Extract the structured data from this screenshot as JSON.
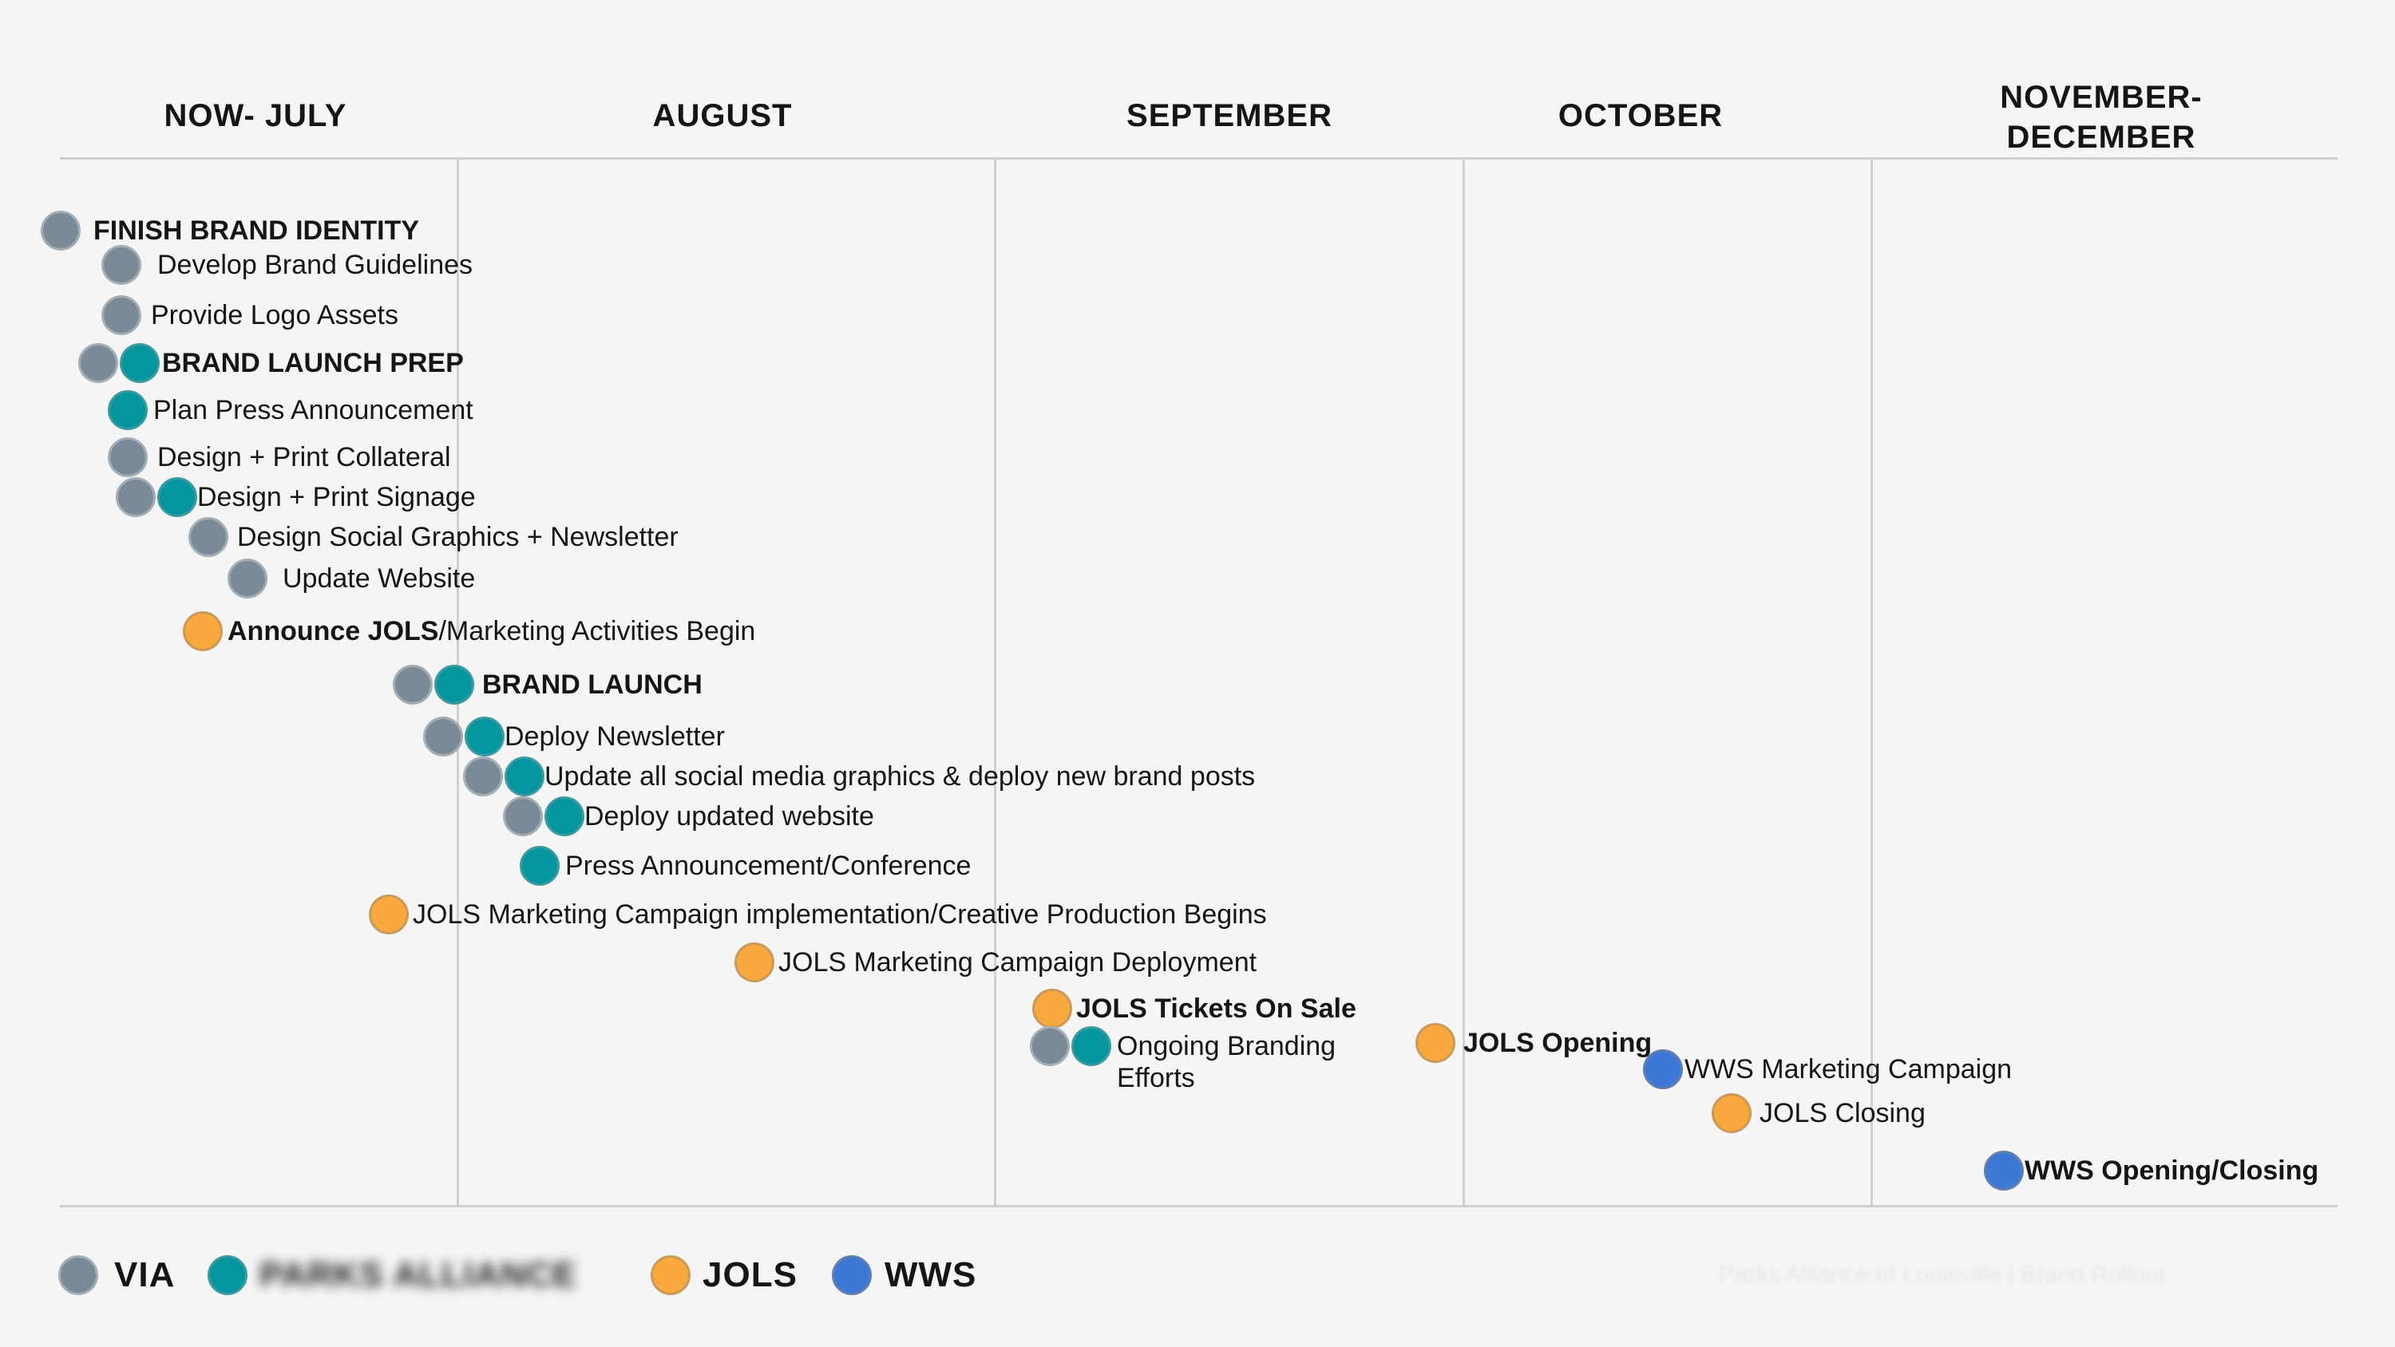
{
  "months": [
    {
      "id": "now-july",
      "lines": [
        "NOW- JULY"
      ]
    },
    {
      "id": "august",
      "lines": [
        "AUGUST"
      ]
    },
    {
      "id": "september",
      "lines": [
        "SEPTEMBER"
      ]
    },
    {
      "id": "october",
      "lines": [
        "OCTOBER"
      ]
    },
    {
      "id": "november-december",
      "lines": [
        "NOVEMBER-",
        "DECEMBER"
      ]
    }
  ],
  "items": [
    {
      "id": "finish-brand-identity",
      "dots": [
        "via"
      ],
      "segments": [
        {
          "text": "FINISH BRAND IDENTITY",
          "bold": true
        }
      ]
    },
    {
      "id": "develop-brand-guidelines",
      "dots": [
        "via"
      ],
      "segments": [
        {
          "text": "Develop Brand Guidelines",
          "bold": false
        }
      ]
    },
    {
      "id": "provide-logo-assets",
      "dots": [
        "via"
      ],
      "segments": [
        {
          "text": "Provide Logo Assets",
          "bold": false
        }
      ]
    },
    {
      "id": "brand-launch-prep",
      "dots": [
        "via",
        "parks"
      ],
      "segments": [
        {
          "text": "BRAND LAUNCH PREP",
          "bold": true
        }
      ]
    },
    {
      "id": "plan-press-announcement",
      "dots": [
        "parks"
      ],
      "segments": [
        {
          "text": "Plan Press Announcement",
          "bold": false
        }
      ]
    },
    {
      "id": "design-print-collateral",
      "dots": [
        "via"
      ],
      "segments": [
        {
          "text": "Design + Print Collateral",
          "bold": false
        }
      ]
    },
    {
      "id": "design-print-signage",
      "dots": [
        "via",
        "parks"
      ],
      "segments": [
        {
          "text": "Design + Print Signage",
          "bold": false
        }
      ]
    },
    {
      "id": "design-social-graphics",
      "dots": [
        "via"
      ],
      "segments": [
        {
          "text": "Design Social Graphics + Newsletter",
          "bold": false
        }
      ]
    },
    {
      "id": "update-website",
      "dots": [
        "via"
      ],
      "segments": [
        {
          "text": "Update Website",
          "bold": false
        }
      ]
    },
    {
      "id": "announce-jols",
      "dots": [
        "jols"
      ],
      "segments": [
        {
          "text": "Announce JOLS",
          "bold": true
        },
        {
          "text": "/Marketing Activities Begin",
          "bold": false
        }
      ]
    },
    {
      "id": "brand-launch",
      "dots": [
        "via",
        "parks"
      ],
      "segments": [
        {
          "text": "BRAND LAUNCH",
          "bold": true
        }
      ]
    },
    {
      "id": "deploy-newsletter",
      "dots": [
        "via",
        "parks"
      ],
      "segments": [
        {
          "text": "Deploy Newsletter",
          "bold": false
        }
      ]
    },
    {
      "id": "update-social-media",
      "dots": [
        "via",
        "parks"
      ],
      "segments": [
        {
          "text": "Update all social media graphics & deploy new brand posts",
          "bold": false
        }
      ]
    },
    {
      "id": "deploy-updated-website",
      "dots": [
        "via",
        "parks"
      ],
      "segments": [
        {
          "text": "Deploy updated website",
          "bold": false
        }
      ]
    },
    {
      "id": "press-announcement",
      "dots": [
        "parks"
      ],
      "segments": [
        {
          "text": "Press Announcement/Conference",
          "bold": false
        }
      ]
    },
    {
      "id": "jols-campaign-implementation",
      "dots": [
        "jols"
      ],
      "segments": [
        {
          "text": "JOLS Marketing Campaign implementation/Creative Production Begins",
          "bold": false
        }
      ]
    },
    {
      "id": "jols-campaign-deployment",
      "dots": [
        "jols"
      ],
      "segments": [
        {
          "text": "JOLS Marketing Campaign Deployment",
          "bold": false
        }
      ]
    },
    {
      "id": "jols-tickets-on-sale",
      "dots": [
        "jols"
      ],
      "segments": [
        {
          "text": "JOLS Tickets On Sale",
          "bold": true
        }
      ]
    },
    {
      "id": "ongoing-branding",
      "dots": [
        "via",
        "parks"
      ],
      "segments": [
        {
          "text": "Ongoing Branding\nEfforts",
          "bold": false
        }
      ]
    },
    {
      "id": "jols-opening",
      "dots": [
        "jols"
      ],
      "segments": [
        {
          "text": "JOLS Opening",
          "bold": true
        }
      ]
    },
    {
      "id": "wws-marketing-campaign",
      "dots": [
        "wws"
      ],
      "segments": [
        {
          "text": "WWS Marketing Campaign",
          "bold": false
        }
      ]
    },
    {
      "id": "jols-closing",
      "dots": [
        "jols"
      ],
      "segments": [
        {
          "text": "JOLS Closing",
          "bold": false
        }
      ]
    },
    {
      "id": "wws-opening-closing",
      "dots": [
        "wws"
      ],
      "segments": [
        {
          "text": "WWS Opening/Closing",
          "bold": true
        }
      ]
    }
  ],
  "legend": [
    {
      "key": "via",
      "label": "VIA",
      "blurred": false
    },
    {
      "key": "parks",
      "label": "PARKS ALLIANCE",
      "blurred": true
    },
    {
      "key": "jols",
      "label": "JOLS",
      "blurred": false
    },
    {
      "key": "wws",
      "label": "WWS",
      "blurred": false
    }
  ],
  "footer": {
    "text": "Parks Alliance of Louisville | Brand Rollout",
    "blurred": true
  },
  "colors": {
    "via": "#7a8a96",
    "parks": "#05959e",
    "jols": "#f8a83c",
    "wws": "#3d78d6",
    "grid": "#cfcfcf",
    "background": "#f5f5f5"
  }
}
